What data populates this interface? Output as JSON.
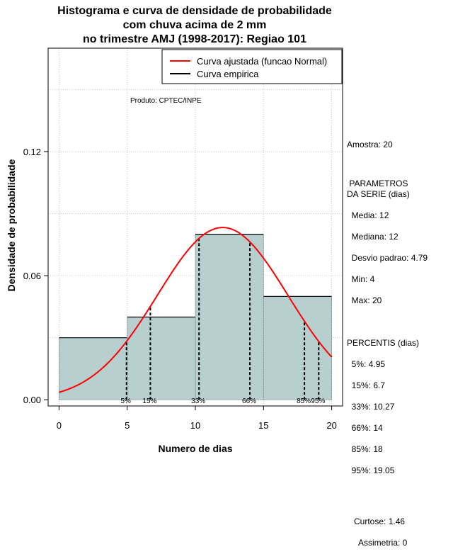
{
  "chart_data": {
    "type": "bar",
    "title": [
      "Histograma e curva de densidade de probabilidade",
      "com chuva acima de 2 mm",
      "no trimestre AMJ (1998-2017): Regiao 101"
    ],
    "xlabel": "Numero de dias",
    "ylabel": "Densidade de probabilidade",
    "xlim": [
      -0.8,
      20.8
    ],
    "ylim": [
      -0.003,
      0.17
    ],
    "xticks": [
      0,
      5,
      10,
      15,
      20
    ],
    "yticks": [
      0.0,
      0.06,
      0.12
    ],
    "ytick_labels": [
      "0.00",
      "0.06",
      "0.12"
    ],
    "grid": true,
    "bins": [
      {
        "from": 0,
        "to": 5,
        "density": 0.03
      },
      {
        "from": 5,
        "to": 10,
        "density": 0.04
      },
      {
        "from": 10,
        "to": 15,
        "density": 0.08
      },
      {
        "from": 15,
        "to": 20,
        "density": 0.05
      }
    ],
    "bar_fill": "#b7cfcf",
    "normal_curve": {
      "mean": 12,
      "sd": 4.79,
      "color": "#ff0000",
      "x_from": 0,
      "x_to": 20
    },
    "percentiles": [
      {
        "label": "5%",
        "x": 4.95
      },
      {
        "label": "15%",
        "x": 6.7
      },
      {
        "label": "33%",
        "x": 10.27
      },
      {
        "label": "66%",
        "x": 14
      },
      {
        "label": "85%",
        "x": 18
      },
      {
        "label": "95%",
        "x": 19.05
      }
    ],
    "legend": {
      "placement": "top-right",
      "entries": [
        {
          "label": "Curva ajustada (funcao Normal)",
          "color": "#ff0000"
        },
        {
          "label": "Curva empirica",
          "color": "#000000"
        }
      ]
    },
    "annotation": "Produto: CPTEC/INPE"
  },
  "side_panel": {
    "amostra": "Amostra: 20",
    "param_title": " PARAMETROS\nDA SERIE (dias)",
    "media": "  Media: 12",
    "mediana": "  Mediana: 12",
    "desvio": "  Desvio padrao: 4.79",
    "min": "  Min: 4",
    "max": "  Max: 20",
    "percentis_title": "PERCENTIS (dias)",
    "p5": "  5%: 4.95",
    "p15": "  15%: 6.7",
    "p33": "  33%: 10.27",
    "p66": "  66%: 14",
    "p85": "  85%: 18",
    "p95": "  95%: 19.05",
    "curtose": "   Curtose: 1.46",
    "assimetria": "     Assimetria: 0"
  }
}
